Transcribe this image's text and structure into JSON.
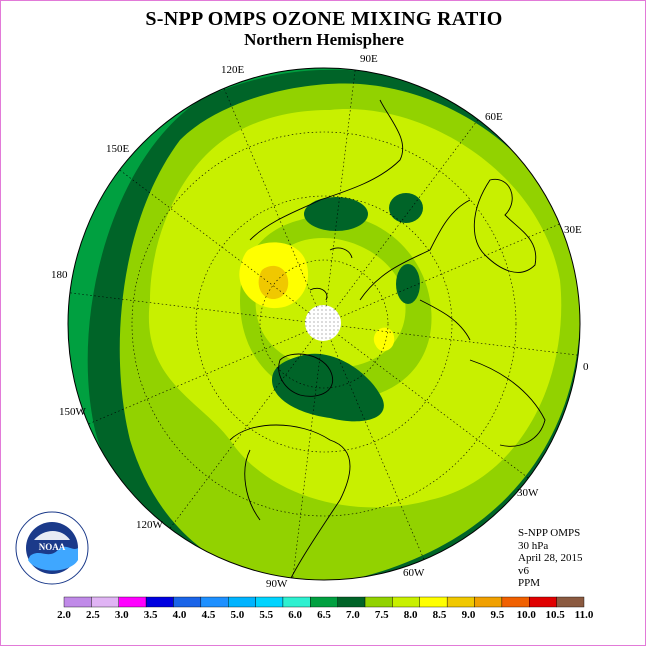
{
  "title": "S-NPP OMPS OZONE MIXING RATIO",
  "subtitle": "Northern Hemisphere",
  "map": {
    "projection": "north-polar-stereographic",
    "longitude_labels": [
      {
        "text": "90E"
      },
      {
        "text": "60E"
      },
      {
        "text": "30E"
      },
      {
        "text": "0"
      },
      {
        "text": "30W"
      },
      {
        "text": "60W"
      },
      {
        "text": "90W"
      },
      {
        "text": "120W"
      },
      {
        "text": "150W"
      },
      {
        "text": "180"
      },
      {
        "text": "150E"
      },
      {
        "text": "120E"
      }
    ],
    "no_data_region": "north-pole"
  },
  "info": {
    "instrument": "S-NPP OMPS",
    "level": "30 hPa",
    "date": "April 28, 2015",
    "version": "v6",
    "units": "PPM"
  },
  "colorbar": {
    "labels": [
      "2.0",
      "2.5",
      "3.0",
      "3.5",
      "4.0",
      "4.5",
      "5.0",
      "5.5",
      "6.0",
      "6.5",
      "7.0",
      "7.5",
      "8.0",
      "8.5",
      "9.0",
      "9.5",
      "10.0",
      "10.5",
      "11.0"
    ],
    "colors": [
      "#c08ae8",
      "#e0b4f4",
      "#ff00ff",
      "#0000e0",
      "#1a64e8",
      "#1e90ff",
      "#00b4ff",
      "#00d4ff",
      "#2ef0d0",
      "#00a040",
      "#006428",
      "#92d200",
      "#c8f000",
      "#ffff00",
      "#f0c800",
      "#f0a000",
      "#f06000",
      "#e00000",
      "#8b5a40"
    ]
  },
  "logo": {
    "text": "NOAA",
    "ring_text": "NATIONAL OCEANIC AND ATMOSPHERIC ADMINISTRATION · U.S. DEPARTMENT OF COMMERCE"
  }
}
